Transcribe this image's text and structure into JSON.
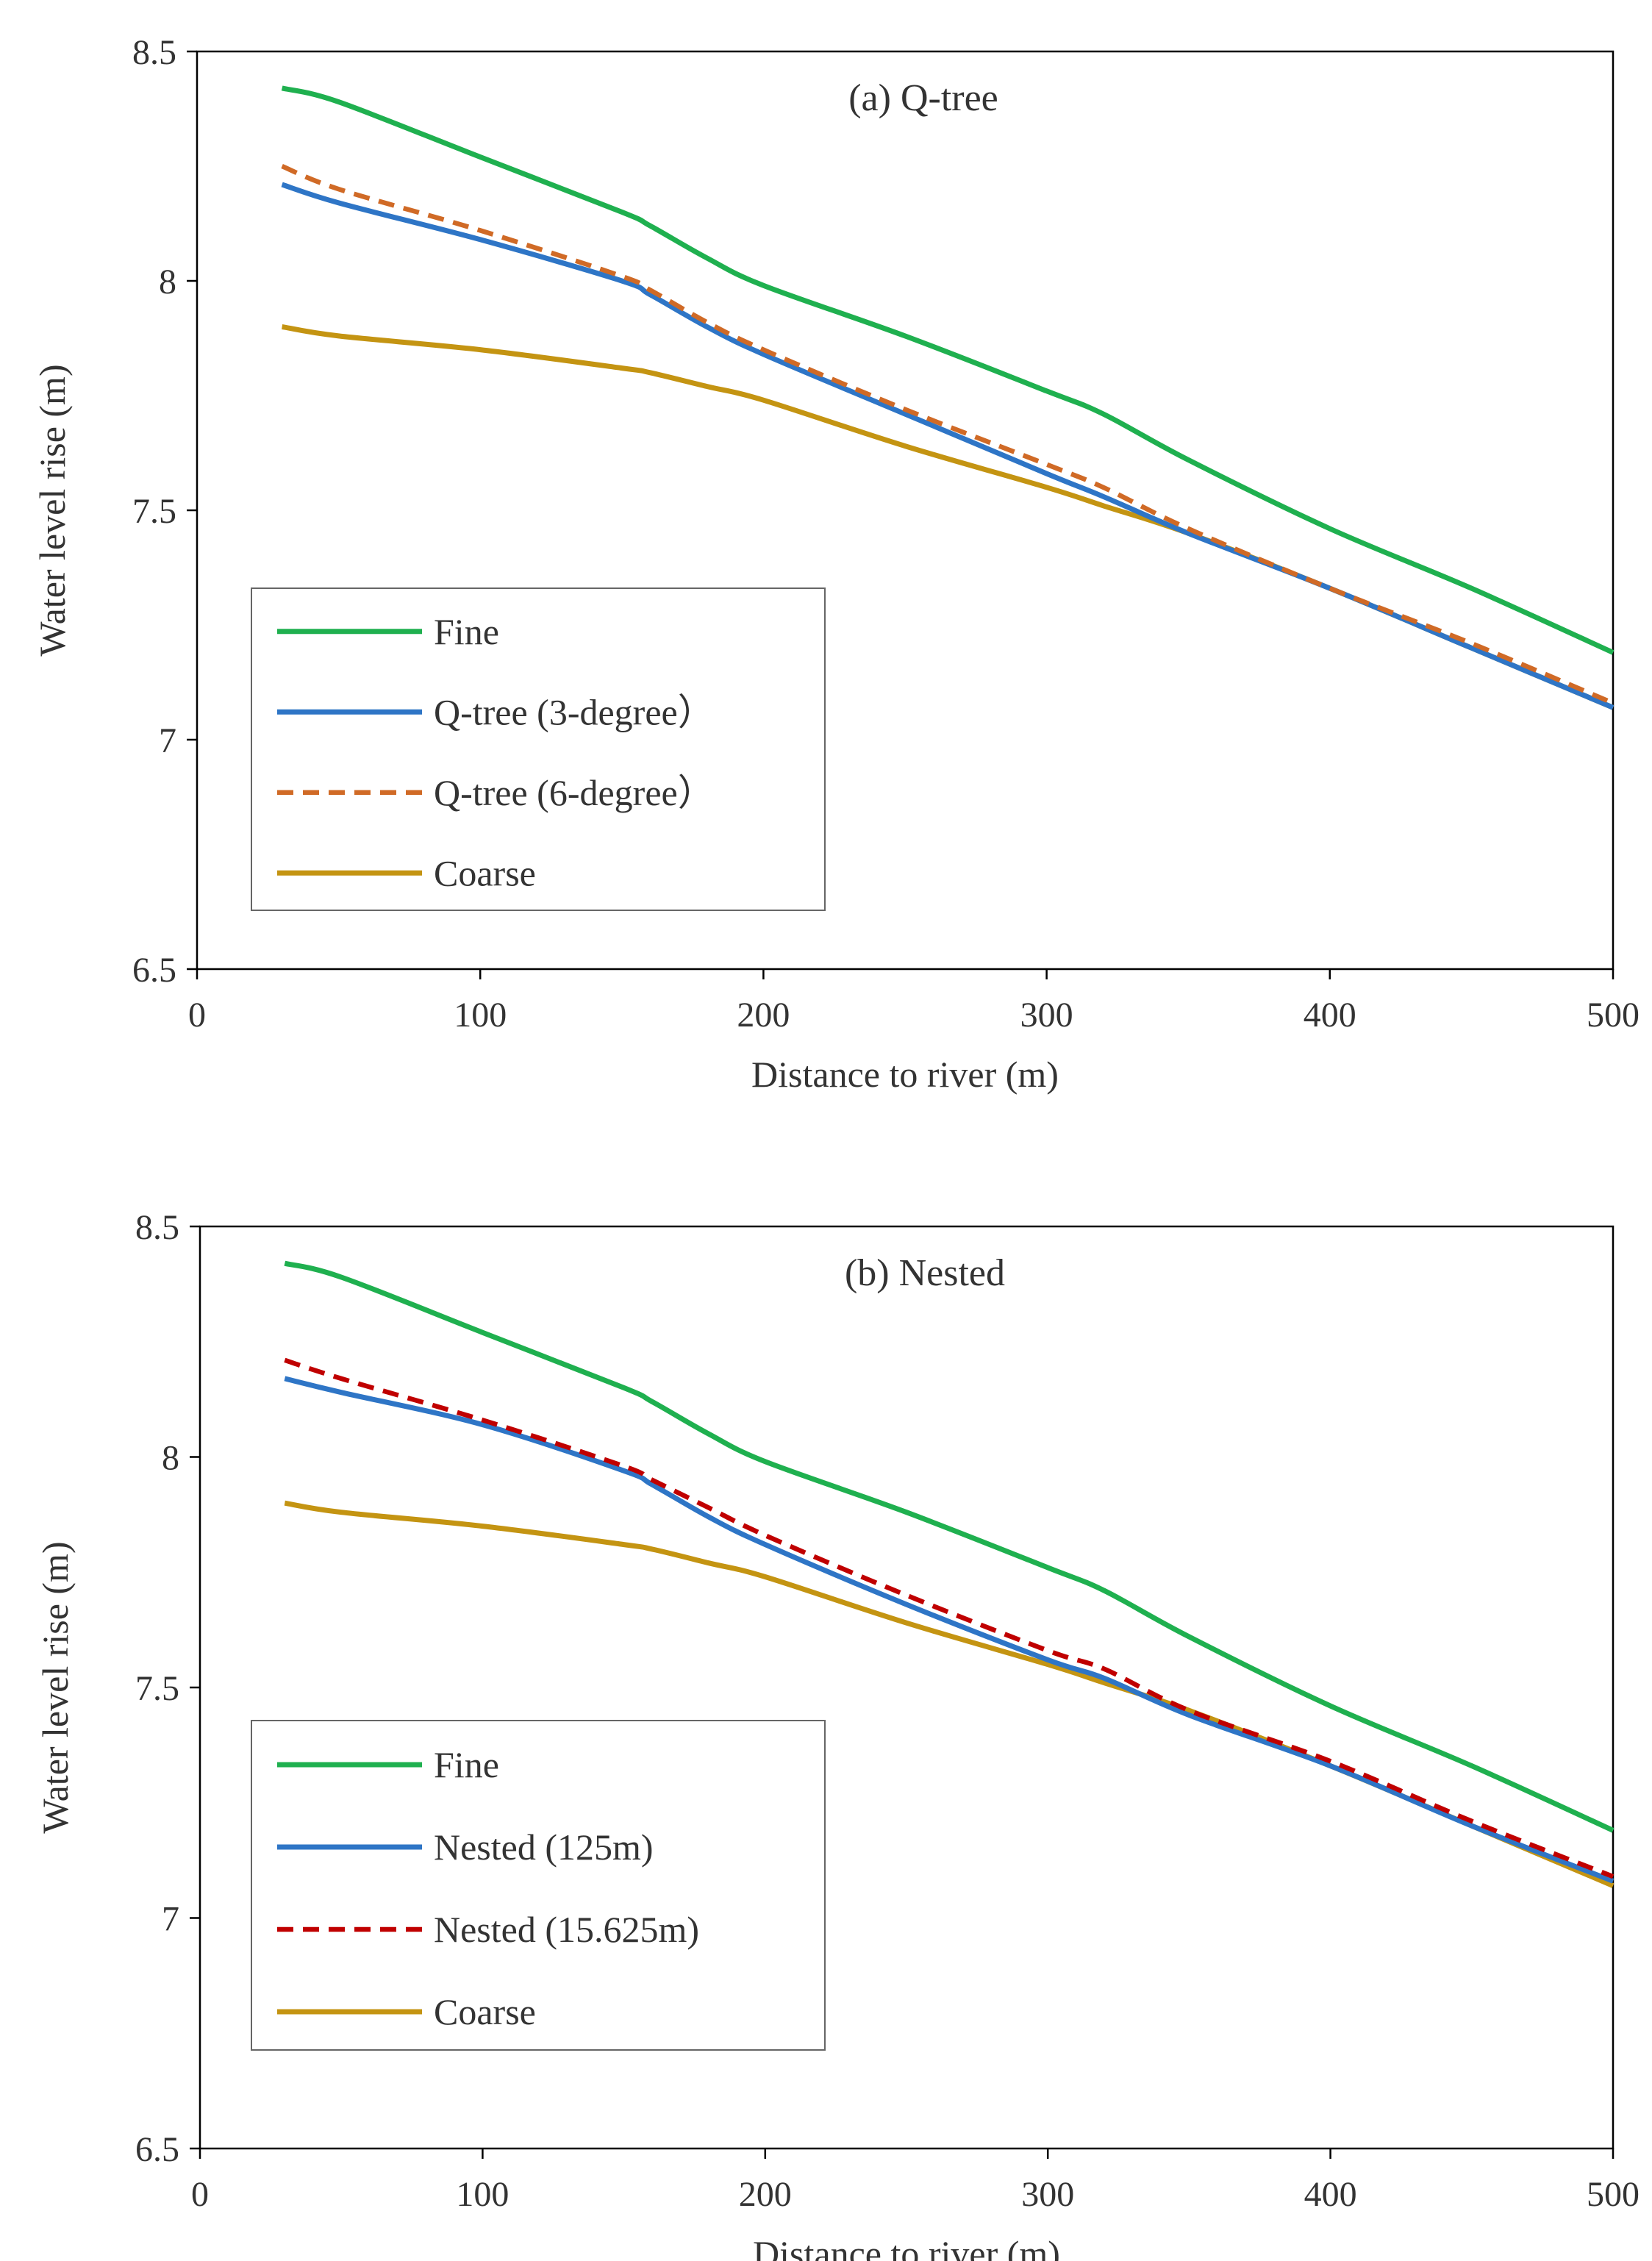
{
  "chart_data": [
    {
      "type": "line",
      "title": "(a) Q-tree",
      "xlabel": "Distance to river (m)",
      "ylabel": "Water level rise (m)",
      "xlim": [
        0,
        500
      ],
      "ylim": [
        6.5,
        8.5
      ],
      "x_ticks": [
        "0",
        "100",
        "200",
        "300",
        "400",
        "500"
      ],
      "y_ticks": [
        "6.5",
        "7",
        "7.5",
        "8",
        "8.5"
      ],
      "grid": false,
      "legend_position": "lower-left",
      "x": [
        30,
        50,
        100,
        150,
        160,
        180,
        200,
        250,
        300,
        320,
        350,
        400,
        450,
        500
      ],
      "series": [
        {
          "name": "Fine",
          "color": "#1fb04f",
          "dash": "solid",
          "values": [
            8.42,
            8.39,
            8.27,
            8.15,
            8.12,
            8.05,
            7.99,
            7.88,
            7.76,
            7.71,
            7.61,
            7.46,
            7.33,
            7.19
          ]
        },
        {
          "name": "Q-tree (3-degree）",
          "color": "#2e75c6",
          "dash": "solid",
          "values": [
            8.21,
            8.17,
            8.09,
            8.0,
            7.97,
            7.9,
            7.84,
            7.71,
            7.58,
            7.53,
            7.45,
            7.33,
            7.2,
            7.07
          ]
        },
        {
          "name": "Q-tree (6-degree）",
          "color": "#d06a26",
          "dash": "dashed",
          "values": [
            8.25,
            8.2,
            8.11,
            8.01,
            7.98,
            7.91,
            7.85,
            7.72,
            7.6,
            7.55,
            7.46,
            7.33,
            7.21,
            7.08
          ]
        },
        {
          "name": "Coarse",
          "color": "#c49412",
          "dash": "solid",
          "values": [
            7.9,
            7.88,
            7.85,
            7.81,
            7.8,
            7.77,
            7.74,
            7.64,
            7.55,
            7.51,
            7.45,
            7.33,
            7.2,
            7.07
          ]
        }
      ]
    },
    {
      "type": "line",
      "title": "(b) Nested",
      "xlabel": "Distance to river (m)",
      "ylabel": "Water level rise (m)",
      "xlim": [
        0,
        500
      ],
      "ylim": [
        6.5,
        8.5
      ],
      "x_ticks": [
        "0",
        "100",
        "200",
        "300",
        "400",
        "500"
      ],
      "y_ticks": [
        "6.5",
        "7",
        "7.5",
        "8",
        "8.5"
      ],
      "grid": false,
      "legend_position": "lower-left",
      "x": [
        30,
        50,
        100,
        150,
        160,
        180,
        200,
        250,
        300,
        320,
        350,
        400,
        450,
        500
      ],
      "series": [
        {
          "name": "Fine",
          "color": "#1fb04f",
          "dash": "solid",
          "values": [
            8.42,
            8.39,
            8.27,
            8.15,
            8.12,
            8.05,
            7.99,
            7.88,
            7.76,
            7.71,
            7.61,
            7.46,
            7.33,
            7.19
          ]
        },
        {
          "name": "Nested (125m)",
          "color": "#2e75c6",
          "dash": "solid",
          "values": [
            8.17,
            8.14,
            8.07,
            7.97,
            7.94,
            7.87,
            7.81,
            7.68,
            7.56,
            7.52,
            7.44,
            7.33,
            7.2,
            7.08
          ]
        },
        {
          "name": "Nested (15.625m)",
          "color": "#c00000",
          "dash": "dashed",
          "values": [
            8.21,
            8.17,
            8.08,
            7.98,
            7.95,
            7.89,
            7.83,
            7.7,
            7.58,
            7.54,
            7.45,
            7.34,
            7.21,
            7.09
          ]
        },
        {
          "name": "Coarse",
          "color": "#c49412",
          "dash": "solid",
          "values": [
            7.9,
            7.88,
            7.85,
            7.81,
            7.8,
            7.77,
            7.74,
            7.64,
            7.55,
            7.51,
            7.45,
            7.33,
            7.2,
            7.07
          ]
        }
      ]
    }
  ]
}
